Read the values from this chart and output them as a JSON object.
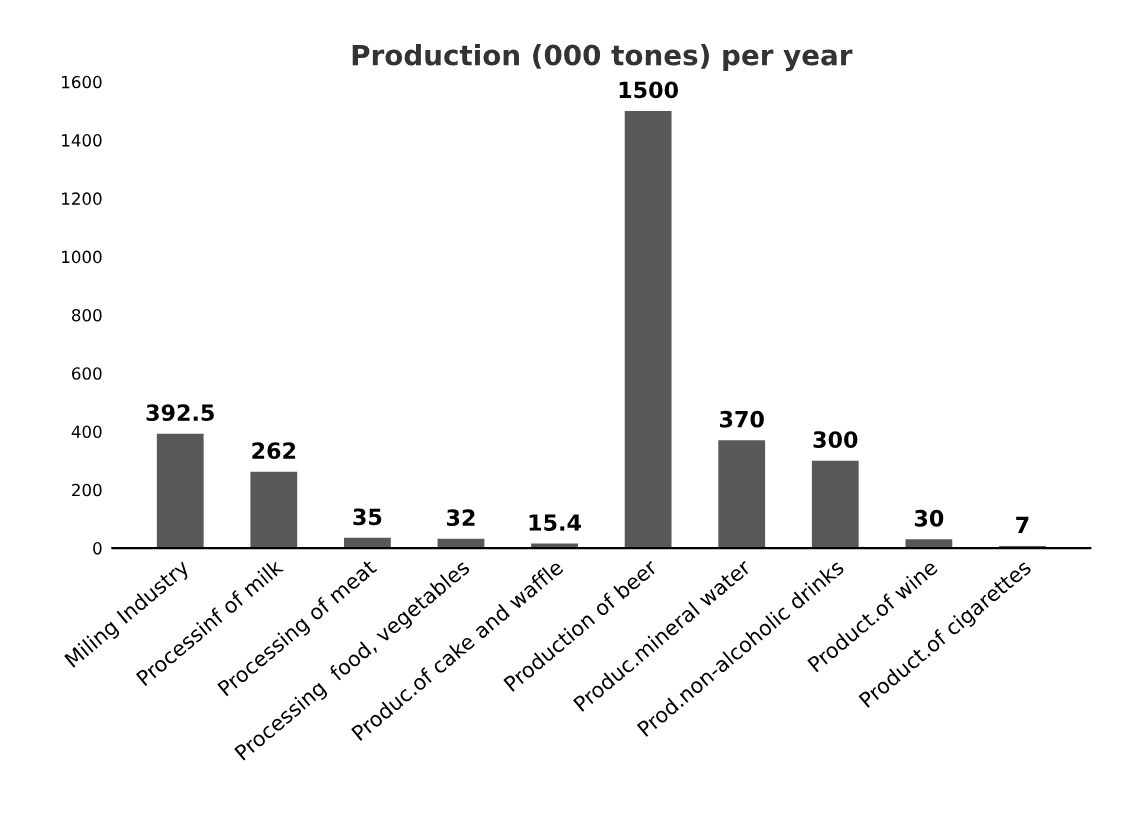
{
  "chart_data": {
    "type": "bar",
    "title": "Production (000 tones) per year",
    "categories": [
      "Miling Industry",
      "Processinf of milk",
      "Processing of meat",
      "Processing  food, vegetables",
      "Produc.of cake and waffle",
      "Production of beer",
      "Produc.mineral water",
      "Prod.non-alcoholic drinks",
      "Product.of wine",
      "Product.of cigarettes"
    ],
    "values": [
      392.5,
      262,
      35,
      32,
      15.4,
      1500,
      370,
      300,
      30,
      7
    ],
    "color": "#585858",
    "ylim": [
      0,
      1600
    ],
    "yticks": [
      0,
      200,
      400,
      600,
      800,
      1000,
      1200,
      1400,
      1600
    ],
    "data_labels": true,
    "grid": false,
    "legend": false
  }
}
